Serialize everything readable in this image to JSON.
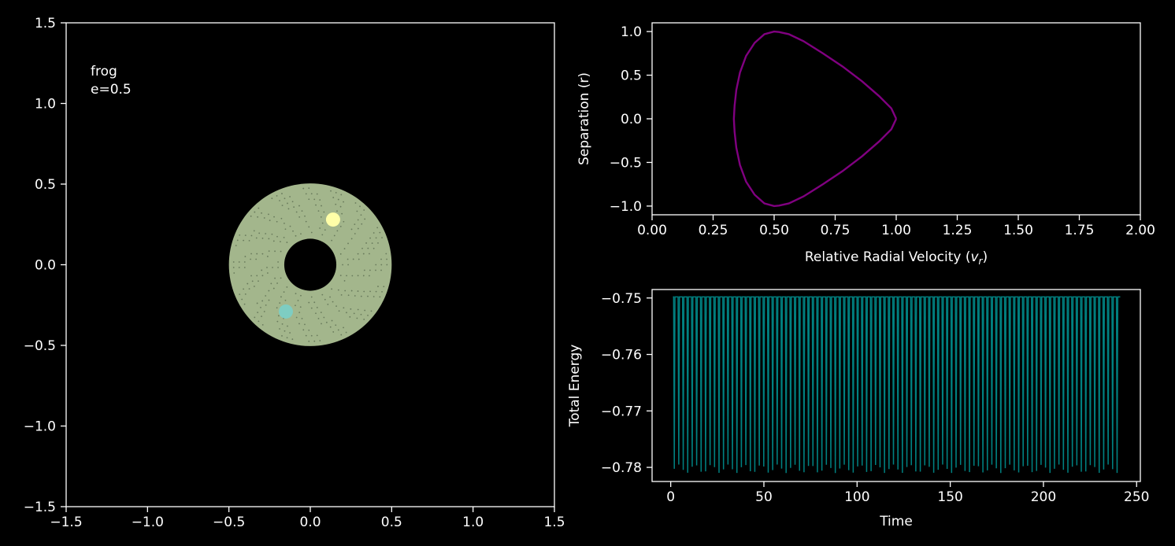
{
  "colors": {
    "background": "#000000",
    "foreground": "#ffffff",
    "disc_fill": "#a3b68c",
    "disc_dots": "#3b4a34",
    "body_one": "#ffffa8",
    "body_two": "#7ecdc2",
    "phase_curve": "#800080",
    "energy_curve": "#008080"
  },
  "chart_data": [
    {
      "type": "scatter",
      "name": "orbit",
      "annotation": [
        "frog",
        "e=0.5"
      ],
      "xlim": [
        -1.5,
        1.5
      ],
      "ylim": [
        -1.5,
        1.5
      ],
      "xticks": [
        -1.5,
        -1.0,
        -0.5,
        0.0,
        0.5,
        1.0,
        1.5
      ],
      "yticks": [
        -1.5,
        -1.0,
        -0.5,
        0.0,
        0.5,
        1.0,
        1.5
      ],
      "xticklabels": [
        "−1.5",
        "−1.0",
        "−0.5",
        "0.0",
        "0.5",
        "1.0",
        "1.5"
      ],
      "yticklabels": [
        "−1.5",
        "−1.0",
        "−0.5",
        "0.0",
        "0.5",
        "1.0",
        "1.5"
      ],
      "trajectory_annulus": {
        "inner_radius": 0.16,
        "outer_radius": 0.5
      },
      "bodies": [
        {
          "x": 0.14,
          "y": 0.28
        },
        {
          "x": -0.15,
          "y": -0.29
        }
      ],
      "grid": false
    },
    {
      "type": "line",
      "name": "phase",
      "xlabel_main": "Relative Radial Velocity (",
      "xlabel_math": "v",
      "xlabel_sub": "r",
      "xlabel_end": ")",
      "ylabel": "Separation (r)",
      "xlim": [
        0,
        2.0
      ],
      "ylim": [
        -1.1,
        1.1
      ],
      "xticks": [
        0,
        0.25,
        0.5,
        0.75,
        1.0,
        1.25,
        1.5,
        1.75,
        2.0
      ],
      "xticklabels": [
        "0.00",
        "0.25",
        "0.50",
        "0.75",
        "1.00",
        "1.25",
        "1.50",
        "1.75",
        "2.00"
      ],
      "yticks": [
        -1.0,
        -0.5,
        0.0,
        0.5,
        1.0
      ],
      "yticklabels": [
        "−1.0",
        "−0.5",
        "0.0",
        "0.5",
        "1.0"
      ],
      "x": [
        1.0,
        0.98,
        0.93,
        0.86,
        0.78,
        0.7,
        0.62,
        0.56,
        0.52,
        0.5,
        0.46,
        0.42,
        0.385,
        0.36,
        0.345,
        0.338,
        0.335,
        0.338,
        0.345,
        0.36,
        0.385,
        0.42,
        0.46,
        0.5,
        0.52,
        0.56,
        0.62,
        0.7,
        0.78,
        0.86,
        0.93,
        0.98,
        1.0
      ],
      "y": [
        0.0,
        0.12,
        0.26,
        0.43,
        0.6,
        0.75,
        0.89,
        0.97,
        0.995,
        1.0,
        0.97,
        0.87,
        0.72,
        0.53,
        0.33,
        0.15,
        0.0,
        -0.15,
        -0.33,
        -0.53,
        -0.72,
        -0.87,
        -0.97,
        -1.0,
        -0.995,
        -0.97,
        -0.89,
        -0.75,
        -0.6,
        -0.43,
        -0.26,
        -0.12,
        0.0
      ],
      "grid": false
    },
    {
      "type": "line",
      "name": "energy",
      "xlabel": "Time",
      "ylabel": "Total Energy",
      "xlim": [
        -10,
        252
      ],
      "ylim": [
        -0.7825,
        -0.7485
      ],
      "xticks": [
        0,
        50,
        100,
        150,
        200,
        250
      ],
      "xticklabels": [
        "0",
        "50",
        "100",
        "150",
        "200",
        "250"
      ],
      "yticks": [
        -0.78,
        -0.77,
        -0.76,
        -0.75
      ],
      "yticklabels": [
        "−0.78",
        "−0.77",
        "−0.76",
        "−0.75"
      ],
      "baseline": -0.7498,
      "spike_period": 2.4,
      "spike_start": 1.2,
      "spike_end": 240,
      "spike_min_range": [
        -0.781,
        -0.7795
      ],
      "grid": false
    }
  ]
}
